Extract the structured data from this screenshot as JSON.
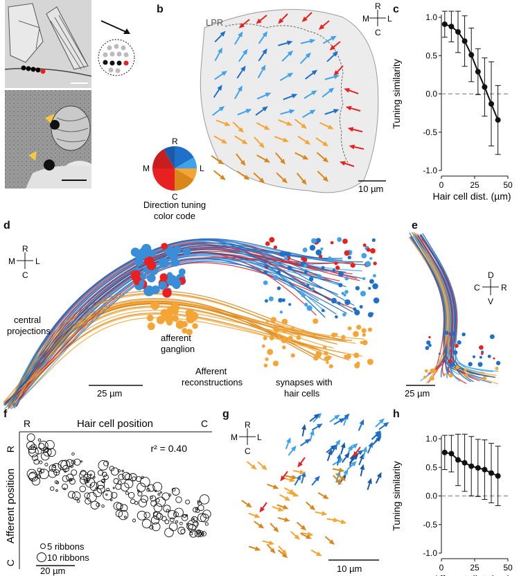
{
  "panel_labels": [
    "a",
    "b",
    "c",
    "d",
    "e",
    "f",
    "g",
    "h"
  ],
  "panel_a": {
    "colors": {
      "black": "#000000",
      "red": "#e8201f",
      "gray": "#bbbbbb",
      "arrowhead": "#f5c842"
    }
  },
  "panel_b": {
    "region_label": "LPR",
    "compass": {
      "up": "R",
      "left": "M",
      "right": "L",
      "down": "C"
    },
    "scalebar_label": "10 µm",
    "pie_labels": {
      "top": "R",
      "left": "M",
      "right": "L",
      "bottom": "C"
    },
    "pie_caption_line1": "Direction tuning",
    "pie_caption_line2": "color code",
    "colors": {
      "red": "#e8201f",
      "dark_red": "#c81e1e",
      "blue": "#1f70c8",
      "light_blue": "#3fa2ea",
      "orange": "#f5a535",
      "dark_orange": "#d9861a",
      "region_fill": "#ececec"
    }
  },
  "panel_d": {
    "compass": {
      "up": "R",
      "left": "M",
      "right": "L",
      "down": "C"
    },
    "labels": {
      "central_l1": "central",
      "central_l2": "projections",
      "ganglion_l1": "afferent",
      "ganglion_l2": "ganglion",
      "recon_l1": "Afferent",
      "recon_l2": "reconstructions",
      "syn_l1": "synapses with",
      "syn_l2": "hair cells"
    },
    "scalebar_label": "25 µm"
  },
  "panel_e": {
    "compass": {
      "up": "D",
      "left": "C",
      "right": "R",
      "down": "V"
    },
    "scalebar_label": "25 µm"
  },
  "panel_f": {
    "title": "Hair cell position",
    "top_left": "R",
    "top_right": "C",
    "ylabel": "Afferent position",
    "y_top": "R",
    "y_bottom": "C",
    "r2_label": "r² = 0.40",
    "legend_small": "5 ribbons",
    "legend_large": "10 ribbons",
    "scalebar_label": "20 µm"
  },
  "panel_g": {
    "compass": {
      "up": "R",
      "left": "M",
      "right": "L",
      "down": "C"
    },
    "scalebar_label": "10 µm"
  },
  "chart_data": [
    {
      "type": "line",
      "panel": "c",
      "xlabel": "Hair cell dist. (µm)",
      "ylabel": "Tuning similarity",
      "xlim": [
        0,
        50
      ],
      "ylim": [
        -1.0,
        1.0
      ],
      "xticks": [
        "0",
        "25",
        "50"
      ],
      "yticks": [
        "-1.0",
        "-0.5",
        "0.0",
        "0.5",
        "1.0"
      ],
      "x": [
        2.5,
        7.5,
        12.5,
        17.5,
        22.5,
        27.5,
        32.5,
        37.5,
        42.5
      ],
      "y": [
        0.91,
        0.88,
        0.81,
        0.69,
        0.51,
        0.29,
        0.09,
        -0.13,
        -0.34
      ],
      "err": [
        0.17,
        0.2,
        0.27,
        0.33,
        0.35,
        0.3,
        0.38,
        0.55,
        0.45
      ],
      "reference_line": 0.0,
      "grid": false
    },
    {
      "type": "line",
      "panel": "h",
      "xlabel": "Afferent dist. (µm)",
      "ylabel": "Tuning similarity",
      "xlim": [
        0,
        50
      ],
      "ylim": [
        -1.0,
        1.0
      ],
      "xticks": [
        "0",
        "25",
        "50"
      ],
      "yticks": [
        "-1.0",
        "-0.5",
        "0.0",
        "0.5",
        "1.0"
      ],
      "x": [
        2.5,
        7.5,
        12.5,
        17.5,
        22.5,
        27.5,
        32.5,
        37.5,
        42.5
      ],
      "y": [
        0.76,
        0.74,
        0.63,
        0.58,
        0.52,
        0.49,
        0.46,
        0.4,
        0.35
      ],
      "err": [
        0.3,
        0.32,
        0.45,
        0.5,
        0.52,
        0.5,
        0.52,
        0.52,
        0.52
      ],
      "reference_line": 0.0,
      "grid": false
    }
  ]
}
